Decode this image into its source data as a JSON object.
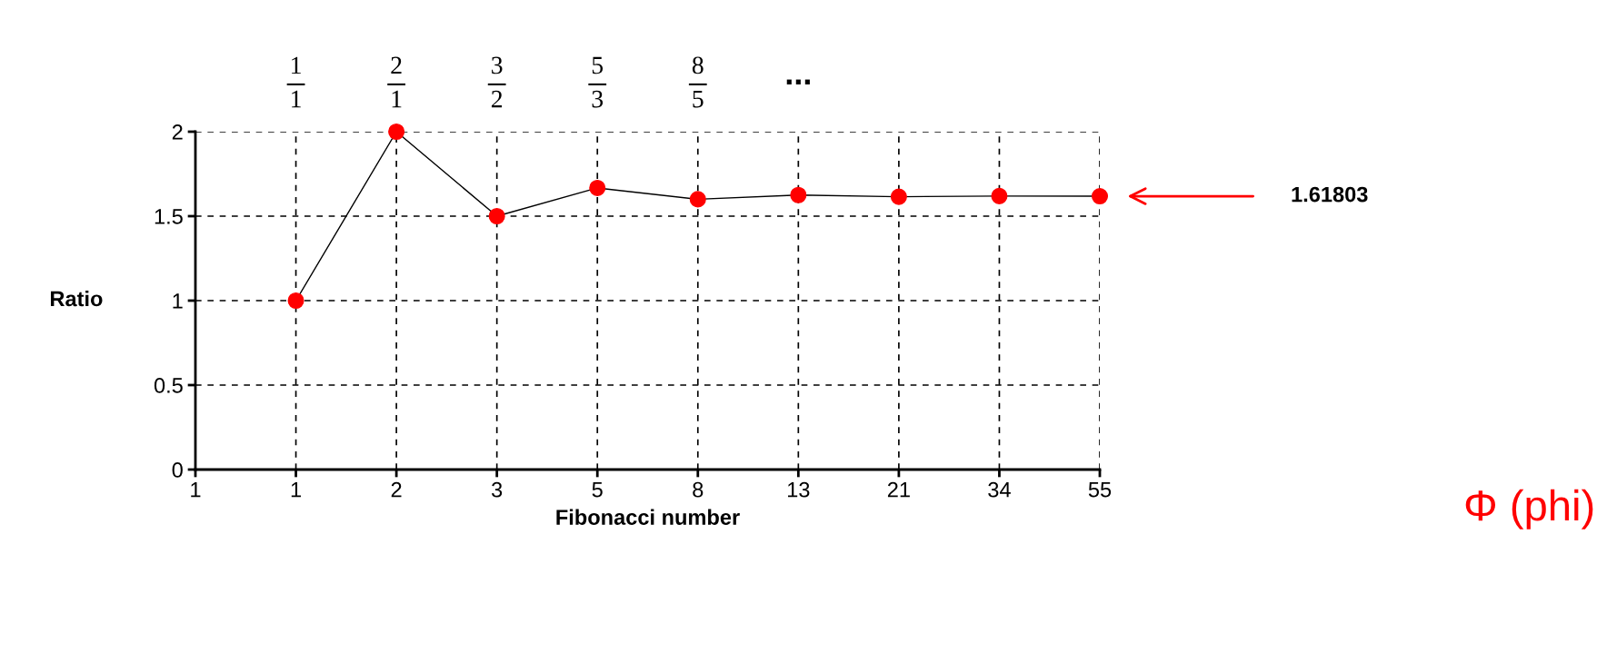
{
  "chart_data": {
    "type": "line",
    "xlabel": "Fibonacci number",
    "ylabel": "Ratio",
    "categories": [
      "1",
      "1",
      "2",
      "3",
      "5",
      "8",
      "13",
      "21",
      "34",
      "55"
    ],
    "series": [
      {
        "color": "#ff0000",
        "values": [
          null,
          1,
          2,
          1.5,
          1.667,
          1.6,
          1.625,
          1.615,
          1.619,
          1.618
        ]
      }
    ],
    "ylim": [
      0,
      2
    ],
    "yticks": [
      0,
      0.5,
      1,
      1.5,
      2
    ],
    "grid": true,
    "marker": "circle",
    "line_style": "solid",
    "legend": false,
    "annotations": [
      "1\n1",
      "2\n1",
      "3\n2",
      "5\n3",
      "8\n5",
      "...",
      "1.61803",
      "Φ (phi)"
    ]
  }
}
